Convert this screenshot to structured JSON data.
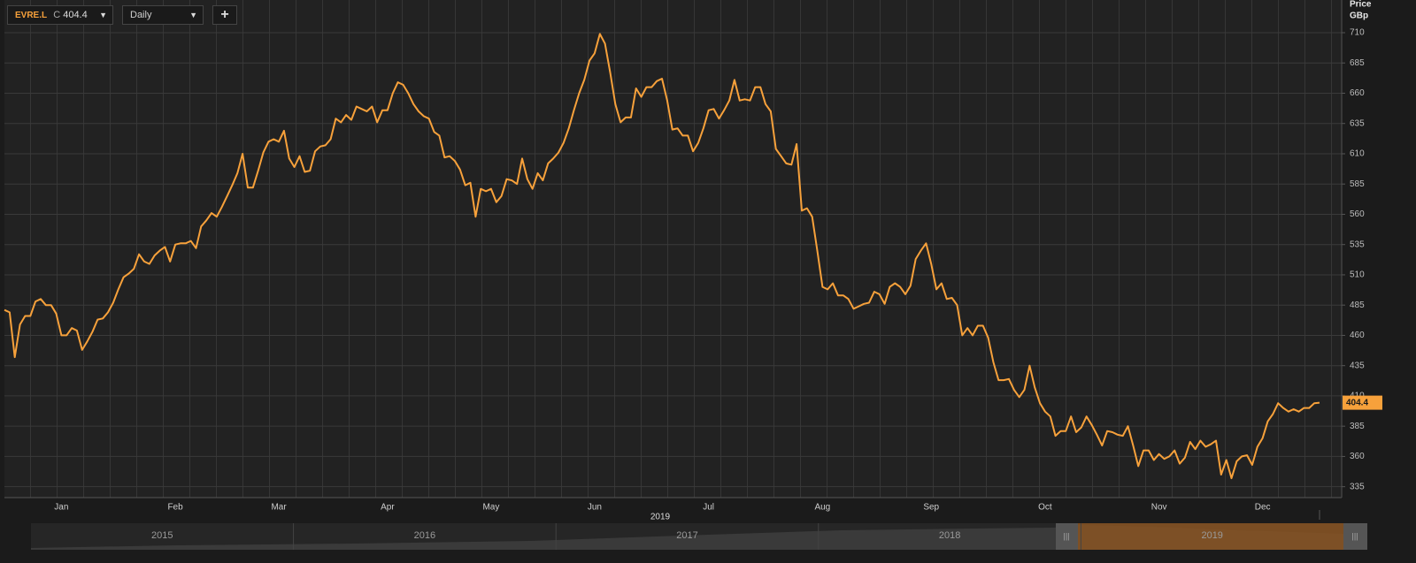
{
  "toolbar": {
    "close_prefix": "C",
    "interval": "Daily",
    "add": "+"
  },
  "navigator": {
    "years": [
      "2015",
      "2016",
      "2017",
      "2018",
      "2019"
    ]
  },
  "chart_data": {
    "type": "line",
    "ylabel": "Price",
    "yunit": "GBp",
    "xlabel": "2019",
    "categories": [
      null,
      null,
      null,
      null,
      null,
      null,
      null,
      null,
      null,
      null,
      null,
      "Jan",
      null,
      null,
      null,
      null,
      null,
      null,
      null,
      null,
      null,
      null,
      null,
      null,
      null,
      null,
      null,
      null,
      null,
      null,
      null,
      null,
      null,
      "Feb",
      null,
      null,
      null,
      null,
      null,
      null,
      null,
      null,
      null,
      null,
      null,
      null,
      null,
      null,
      null,
      null,
      null,
      null,
      null,
      "Mar",
      null,
      null,
      null,
      null,
      null,
      null,
      null,
      null,
      null,
      null,
      null,
      null,
      null,
      null,
      null,
      null,
      null,
      null,
      null,
      null,
      "Apr",
      null,
      null,
      null,
      null,
      null,
      null,
      null,
      null,
      null,
      null,
      null,
      null,
      null,
      null,
      null,
      null,
      null,
      null,
      null,
      "May",
      null,
      null,
      null,
      null,
      null,
      null,
      null,
      null,
      null,
      null,
      null,
      null,
      null,
      null,
      null,
      null,
      null,
      null,
      null,
      "Jun",
      null,
      null,
      null,
      null,
      null,
      null,
      null,
      null,
      null,
      null,
      null,
      null,
      null,
      null,
      null,
      null,
      null,
      null,
      null,
      null,
      null,
      "Jul",
      null,
      null,
      null,
      null,
      null,
      null,
      null,
      null,
      null,
      null,
      null,
      null,
      null,
      null,
      null,
      null,
      null,
      null,
      null,
      null,
      null,
      "Aug",
      null,
      null,
      null,
      null,
      null,
      null,
      null,
      null,
      null,
      null,
      null,
      null,
      null,
      null,
      null,
      null,
      null,
      null,
      null,
      null,
      "Sep",
      null,
      null,
      null,
      null,
      null,
      null,
      null,
      null,
      null,
      null,
      null,
      null,
      null,
      null,
      null,
      null,
      null,
      null,
      null,
      null,
      null,
      "Oct",
      null,
      null,
      null,
      null,
      null,
      null,
      null,
      null,
      null,
      null,
      null,
      null,
      null,
      null,
      null,
      null,
      null,
      null,
      null,
      null,
      null,
      "Nov",
      null,
      null,
      null,
      null,
      null,
      null,
      null,
      null,
      null,
      null,
      null,
      null,
      null,
      null,
      null,
      null,
      null,
      null,
      null,
      "Dec",
      null,
      null,
      null,
      null,
      null,
      null,
      null,
      null,
      null,
      null,
      null
    ],
    "series": [
      {
        "name": "EVRE.L",
        "color": "#f7a13b",
        "values": [
          481,
          479,
          442,
          469,
          476,
          476,
          488,
          490,
          485,
          485,
          478,
          460,
          460,
          466,
          464,
          448,
          455,
          463,
          473,
          474,
          479,
          487,
          498,
          508,
          511,
          515,
          527,
          521,
          519,
          526,
          530,
          533,
          521,
          535,
          536,
          536,
          538,
          532,
          550,
          555,
          561,
          558,
          566,
          575,
          584,
          594,
          610,
          582,
          582,
          596,
          611,
          620,
          622,
          620,
          629,
          606,
          599,
          608,
          595,
          596,
          612,
          616,
          617,
          622,
          639,
          636,
          642,
          638,
          649,
          647,
          645,
          649,
          636,
          646,
          646,
          660,
          669,
          667,
          660,
          651,
          645,
          641,
          639,
          628,
          625,
          607,
          608,
          604,
          597,
          584,
          586,
          558,
          581,
          579,
          581,
          570,
          575,
          589,
          588,
          585,
          606,
          589,
          581,
          594,
          588,
          602,
          606,
          611,
          619,
          631,
          646,
          660,
          671,
          687,
          693,
          709,
          701,
          677,
          651,
          636,
          640,
          640,
          664,
          657,
          665,
          665,
          670,
          672,
          654,
          630,
          631,
          625,
          625,
          612,
          619,
          631,
          646,
          647,
          639,
          646,
          654,
          671,
          654,
          655,
          654,
          665,
          665,
          651,
          645,
          614,
          608,
          602,
          601,
          618,
          563,
          565,
          558,
          530,
          500,
          498,
          503,
          493,
          493,
          490,
          482,
          484,
          486,
          487,
          496,
          494,
          486,
          500,
          503,
          500,
          494,
          501,
          523,
          530,
          536,
          519,
          498,
          503,
          490,
          491,
          485,
          460,
          466,
          460,
          468,
          468,
          458,
          438,
          423,
          423,
          424,
          415,
          409,
          415,
          435,
          417,
          404,
          397,
          393,
          377,
          381,
          381,
          393,
          380,
          384,
          393,
          386,
          378,
          369,
          381,
          380,
          378,
          377,
          385,
          369,
          352,
          365,
          365,
          357,
          362,
          358,
          360,
          365,
          354,
          359,
          372,
          366,
          373,
          368,
          370,
          373,
          345,
          357,
          342,
          356,
          360,
          361,
          353,
          368,
          375,
          389,
          395,
          404,
          400,
          397,
          399,
          397,
          400,
          400,
          404,
          404.4
        ]
      }
    ],
    "ylim": [
      326,
      737
    ],
    "yticks": [
      335,
      360,
      385,
      410,
      435,
      460,
      485,
      510,
      535,
      560,
      585,
      610,
      635,
      660,
      685,
      710
    ],
    "grid": true
  }
}
